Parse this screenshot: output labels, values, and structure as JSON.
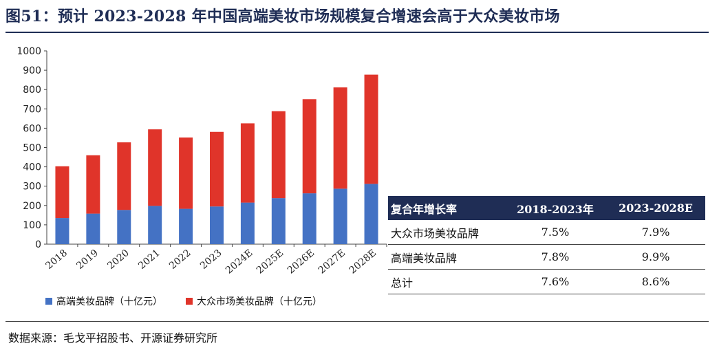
{
  "title": "图51：预计 2023-2028 年中国高端美妆市场规模复合增速会高于大众美妆市场",
  "chart_data": {
    "type": "bar",
    "stacked": true,
    "categories": [
      "2018",
      "2019",
      "2020",
      "2021",
      "2022",
      "2023",
      "2024E",
      "2025E",
      "2026E",
      "2027E",
      "2028E"
    ],
    "series": [
      {
        "name": "高端美妆品牌（十亿元）",
        "color": "#4472c4",
        "values": [
          135,
          158,
          177,
          198,
          183,
          195,
          215,
          238,
          263,
          287,
          312
        ]
      },
      {
        "name": "大众市场美妆品牌（十亿元）",
        "color": "#e0342a",
        "values": [
          268,
          302,
          350,
          396,
          369,
          386,
          410,
          450,
          487,
          524,
          565
        ]
      }
    ],
    "ylim": [
      0,
      1000
    ],
    "yticks": [
      0,
      100,
      200,
      300,
      400,
      500,
      600,
      700,
      800,
      900,
      1000
    ],
    "grid": false,
    "legend_position": "bottom-left"
  },
  "table": {
    "headers": [
      "复合年增长率",
      "2018-2023年",
      "2023-2028E"
    ],
    "rows": [
      [
        "大众市场美妆品牌",
        "7.5%",
        "7.9%"
      ],
      [
        "高端美妆品牌",
        "7.8%",
        "9.9%"
      ],
      [
        "总计",
        "7.6%",
        "8.6%"
      ]
    ],
    "header_color": "#1f2d55"
  },
  "source": "数据来源：毛戈平招股书、开源证券研究所"
}
